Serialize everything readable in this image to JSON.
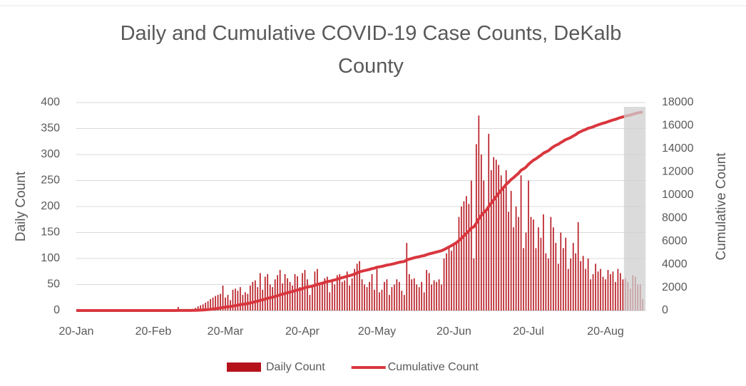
{
  "chart_data": {
    "type": "bar_line",
    "title": "Daily and Cumulative COVID-19 Case Counts, DeKalb County",
    "ylabel": "Daily Count",
    "y2label": "Cumulative Count",
    "categories": [
      "20-Jan",
      null,
      null,
      null,
      null,
      null,
      null,
      null,
      null,
      null,
      null,
      null,
      null,
      null,
      null,
      null,
      null,
      null,
      null,
      null,
      null,
      null,
      null,
      null,
      null,
      null,
      null,
      null,
      null,
      null,
      null,
      "20-Feb",
      null,
      null,
      null,
      null,
      null,
      null,
      null,
      null,
      null,
      null,
      null,
      null,
      null,
      null,
      null,
      null,
      null,
      null,
      null,
      null,
      null,
      null,
      null,
      null,
      null,
      null,
      null,
      null,
      "20-Mar",
      null,
      null,
      null,
      null,
      null,
      null,
      null,
      null,
      null,
      null,
      null,
      null,
      null,
      null,
      null,
      null,
      null,
      null,
      null,
      null,
      null,
      null,
      null,
      null,
      null,
      null,
      null,
      null,
      null,
      null,
      "20-Apr",
      null,
      null,
      null,
      null,
      null,
      null,
      null,
      null,
      null,
      null,
      null,
      null,
      null,
      null,
      null,
      null,
      null,
      null,
      null,
      null,
      null,
      null,
      null,
      null,
      null,
      null,
      null,
      null,
      null,
      "20-May",
      null,
      null,
      null,
      null,
      null,
      null,
      null,
      null,
      null,
      null,
      null,
      null,
      null,
      null,
      null,
      null,
      null,
      null,
      null,
      null,
      null,
      null,
      null,
      null,
      null,
      null,
      null,
      null,
      null,
      null,
      "20-Jun",
      null,
      null,
      null,
      null,
      null,
      null,
      null,
      null,
      null,
      null,
      null,
      null,
      null,
      null,
      null,
      null,
      null,
      null,
      null,
      null,
      null,
      null,
      null,
      null,
      null,
      null,
      null,
      null,
      null,
      "20-Jul",
      null,
      null,
      null,
      null,
      null,
      null,
      null,
      null,
      null,
      null,
      null,
      null,
      null,
      null,
      null,
      null,
      null,
      null,
      null,
      null,
      null,
      null,
      null,
      null,
      null,
      null,
      null,
      null,
      null,
      null,
      "20-Aug",
      null,
      null,
      null,
      null,
      null,
      null,
      null,
      null,
      null,
      null,
      null,
      null,
      null,
      null,
      null
    ],
    "series": [
      {
        "name": "Daily Count",
        "type": "bar",
        "color": "#b5121b",
        "values": [
          0,
          0,
          0,
          0,
          0,
          0,
          0,
          0,
          0,
          0,
          0,
          0,
          0,
          0,
          0,
          0,
          0,
          0,
          0,
          0,
          0,
          0,
          0,
          0,
          0,
          0,
          0,
          0,
          0,
          0,
          0,
          0,
          0,
          0,
          0,
          0,
          0,
          0,
          0,
          0,
          0,
          7,
          0,
          0,
          1,
          0,
          2,
          3,
          5,
          8,
          10,
          12,
          15,
          18,
          22,
          25,
          28,
          30,
          32,
          48,
          25,
          30,
          20,
          40,
          42,
          38,
          45,
          30,
          35,
          32,
          48,
          55,
          58,
          45,
          72,
          40,
          65,
          70,
          50,
          45,
          60,
          68,
          78,
          52,
          70,
          62,
          55,
          48,
          70,
          66,
          45,
          72,
          78,
          60,
          30,
          45,
          75,
          80,
          52,
          55,
          62,
          65,
          35,
          60,
          50,
          68,
          70,
          55,
          58,
          75,
          48,
          62,
          80,
          90,
          95,
          60,
          50,
          45,
          55,
          70,
          40,
          80,
          35,
          40,
          55,
          60,
          30,
          45,
          50,
          60,
          55,
          38,
          30,
          130,
          70,
          60,
          62,
          50,
          45,
          55,
          35,
          78,
          72,
          50,
          58,
          55,
          60,
          50,
          100,
          110,
          120,
          115,
          125,
          130,
          180,
          200,
          210,
          220,
          205,
          250,
          100,
          320,
          375,
          300,
          250,
          190,
          340,
          270,
          295,
          290,
          280,
          260,
          240,
          270,
          190,
          230,
          160,
          200,
          180,
          260,
          120,
          150,
          250,
          180,
          175,
          120,
          160,
          140,
          185,
          110,
          100,
          180,
          160,
          130,
          90,
          150,
          120,
          140,
          80,
          100,
          130,
          110,
          170,
          95,
          105,
          80,
          100,
          60,
          70,
          90,
          75,
          80,
          65,
          60,
          78,
          70,
          75,
          55,
          80,
          72,
          60,
          62,
          55,
          42,
          68,
          65,
          50,
          50,
          22
        ]
      },
      {
        "name": "Cumulative Count",
        "type": "line",
        "axis": "y2",
        "color": "#d9363e",
        "values": [
          0,
          0,
          0,
          0,
          0,
          0,
          0,
          0,
          0,
          0,
          0,
          0,
          0,
          0,
          0,
          0,
          0,
          0,
          0,
          0,
          0,
          0,
          0,
          0,
          0,
          0,
          0,
          0,
          0,
          0,
          0,
          0,
          0,
          0,
          0,
          0,
          0,
          0,
          0,
          0,
          0,
          7,
          7,
          7,
          8,
          8,
          10,
          13,
          18,
          26,
          36,
          48,
          63,
          81,
          103,
          128,
          156,
          186,
          218,
          266,
          291,
          321,
          341,
          381,
          423,
          461,
          506,
          536,
          571,
          603,
          651,
          706,
          764,
          809,
          881,
          921,
          986,
          1056,
          1106,
          1151,
          1211,
          1279,
          1357,
          1409,
          1479,
          1541,
          1596,
          1644,
          1714,
          1780,
          1825,
          1897,
          1975,
          2035,
          2065,
          2110,
          2185,
          2265,
          2317,
          2372,
          2434,
          2499,
          2534,
          2594,
          2644,
          2712,
          2782,
          2837,
          2895,
          2970,
          3018,
          3080,
          3160,
          3250,
          3345,
          3405,
          3455,
          3500,
          3555,
          3625,
          3665,
          3745,
          3780,
          3820,
          3875,
          3935,
          3965,
          4010,
          4060,
          4120,
          4175,
          4213,
          4243,
          4373,
          4443,
          4503,
          4565,
          4615,
          4660,
          4715,
          4750,
          4828,
          4900,
          4950,
          5008,
          5063,
          5123,
          5173,
          5273,
          5383,
          5503,
          5618,
          5743,
          5873,
          6053,
          6253,
          6463,
          6683,
          6888,
          7138,
          7238,
          7558,
          7933,
          8233,
          8483,
          8673,
          9013,
          9283,
          9578,
          9868,
          10148,
          10408,
          10648,
          10918,
          11108,
          11338,
          11498,
          11698,
          11878,
          12138,
          12258,
          12408,
          12658,
          12838,
          13013,
          13133,
          13293,
          13433,
          13618,
          13728,
          13828,
          14008,
          14168,
          14298,
          14388,
          14538,
          14658,
          14798,
          14878,
          14978,
          15108,
          15218,
          15388,
          15483,
          15588,
          15668,
          15768,
          15828,
          15898,
          15988,
          16063,
          16143,
          16208,
          16268,
          16346,
          16416,
          16491,
          16546,
          16626,
          16698,
          16758,
          16820,
          16875,
          16917,
          16985,
          17050,
          17100,
          17150,
          17172
        ]
      }
    ],
    "ylim": [
      0,
      400
    ],
    "yticks": [
      0,
      50,
      100,
      150,
      200,
      250,
      300,
      350,
      400
    ],
    "y2lim": [
      0,
      18000
    ],
    "y2ticks": [
      0,
      2000,
      4000,
      6000,
      8000,
      10000,
      12000,
      14000,
      16000,
      18000
    ],
    "grid": true,
    "legend": "bottom",
    "shade_range": [
      221,
      228
    ]
  }
}
